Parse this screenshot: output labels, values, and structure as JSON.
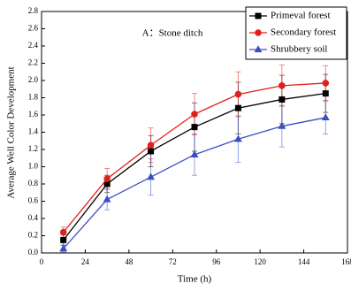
{
  "chart_data": {
    "type": "line",
    "title": "A：Stone ditch",
    "x_label": "Time (h)",
    "y_label": "Average Well Color Development",
    "x": [
      12,
      36,
      60,
      84,
      108,
      132,
      156
    ],
    "series": [
      {
        "name": "Primeval forest",
        "color": "#000000",
        "marker": "square",
        "values": [
          0.15,
          0.8,
          1.18,
          1.46,
          1.68,
          1.78,
          1.85
        ],
        "errors": [
          0.06,
          0.1,
          0.18,
          0.28,
          0.3,
          0.28,
          0.22
        ]
      },
      {
        "name": "Secondary forest",
        "color": "#e0201c",
        "marker": "circle",
        "values": [
          0.24,
          0.86,
          1.25,
          1.61,
          1.84,
          1.94,
          1.97
        ],
        "errors": [
          0.06,
          0.12,
          0.2,
          0.24,
          0.26,
          0.24,
          0.2
        ]
      },
      {
        "name": "Shrubbery soil",
        "color": "#3a4fc0",
        "marker": "triangle",
        "values": [
          0.05,
          0.62,
          0.88,
          1.14,
          1.32,
          1.47,
          1.57
        ],
        "errors": [
          0.04,
          0.12,
          0.21,
          0.24,
          0.27,
          0.24,
          0.19
        ]
      }
    ],
    "xlim": [
      0,
      168
    ],
    "xticks": [
      0,
      24,
      48,
      72,
      96,
      120,
      144,
      168
    ],
    "ylim": [
      0,
      2.8
    ],
    "yticks": [
      {
        "value": 0,
        "label": "0.0"
      },
      {
        "value": 0.2,
        "label": "0.2"
      },
      {
        "value": 0.4,
        "label": "0.4"
      },
      {
        "value": 0.6,
        "label": "0.6"
      },
      {
        "value": 0.8,
        "label": "0.8"
      },
      {
        "value": 1.0,
        "label": "1.0"
      },
      {
        "value": 1.2,
        "label": "1.2"
      },
      {
        "value": 1.4,
        "label": "1.4"
      },
      {
        "value": 1.6,
        "label": "1.6"
      },
      {
        "value": 1.8,
        "label": "1.8"
      },
      {
        "value": 2.0,
        "label": "2.0"
      },
      {
        "value": 2.2,
        "label": "2.2"
      },
      {
        "value": 2.4,
        "label": "2.4"
      },
      {
        "value": 2.6,
        "label": "2.6"
      },
      {
        "value": 2.8,
        "label": "2.8"
      }
    ],
    "legend": "top-right",
    "grid": false
  }
}
